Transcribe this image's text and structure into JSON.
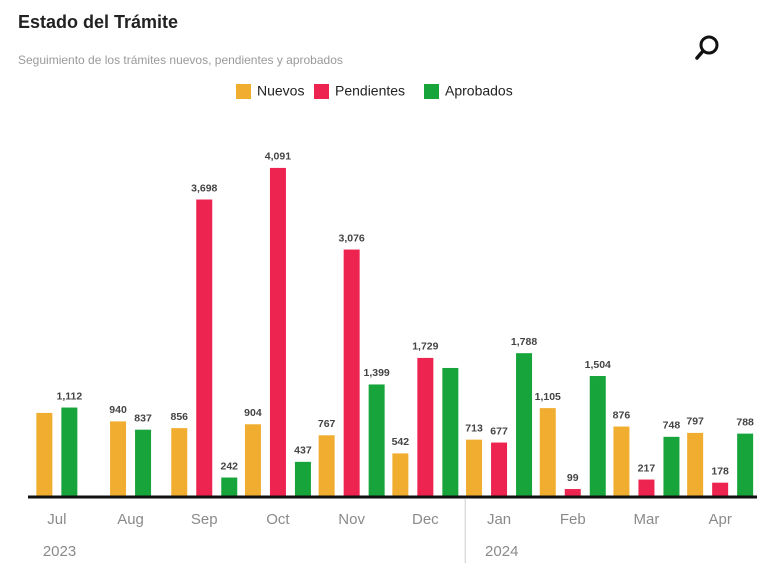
{
  "chart_data": {
    "type": "bar",
    "title": "Estado del Trámite",
    "subtitle": "Seguimiento de los trámites nuevos, pendientes y aprobados",
    "categories": [
      "Jul",
      "Aug",
      "Sep",
      "Oct",
      "Nov",
      "Dec",
      "Jan",
      "Feb",
      "Mar",
      "Apr"
    ],
    "years": [
      {
        "label": "2023",
        "start": 0
      },
      {
        "label": "2024",
        "start": 6
      }
    ],
    "series": [
      {
        "name": "Nuevos",
        "color": "#f0ad30",
        "values": [
          1045,
          940,
          856,
          904,
          767,
          542,
          713,
          1105,
          876,
          797
        ],
        "value_labels": [
          null,
          "940",
          "856",
          "904",
          "767",
          "542",
          "713",
          "1,105",
          "876",
          "797"
        ]
      },
      {
        "name": "Pendientes",
        "color": "#ee2450",
        "values": [
          null,
          null,
          3698,
          4091,
          3076,
          1729,
          677,
          99,
          217,
          178
        ],
        "value_labels": [
          null,
          null,
          "3,698",
          "4,091",
          "3,076",
          "1,729",
          "677",
          "99",
          "217",
          "178"
        ]
      },
      {
        "name": "Aprobados",
        "color": "#17a43b",
        "values": [
          1112,
          837,
          242,
          437,
          1399,
          1604,
          1788,
          1504,
          748,
          788
        ],
        "value_labels": [
          "1,112",
          "837",
          "242",
          "437",
          "1,399",
          null,
          "1,788",
          "1,504",
          "748",
          "788"
        ]
      }
    ],
    "ylim": [
      0,
      4500
    ]
  }
}
